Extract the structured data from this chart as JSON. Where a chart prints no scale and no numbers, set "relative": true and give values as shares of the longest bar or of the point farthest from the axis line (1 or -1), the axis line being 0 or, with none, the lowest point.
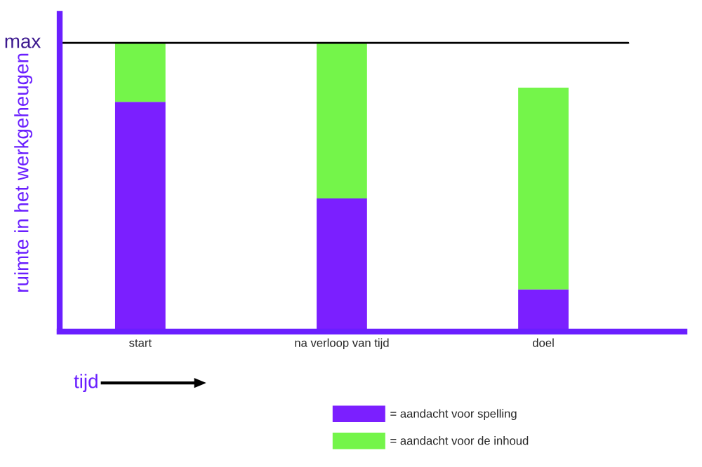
{
  "chart_data": {
    "type": "bar",
    "stacked": true,
    "relative": true,
    "categories": [
      "start",
      "na verloop van tijd",
      "doel"
    ],
    "series": [
      {
        "name": "= aandacht voor spelling",
        "color": "#7b1fff",
        "values": [
          0.796,
          0.461,
          0.146
        ]
      },
      {
        "name": "= aandacht voor de inhoud",
        "color": "#74f54a",
        "values": [
          0.204,
          0.539,
          0.699
        ]
      }
    ],
    "xlabel": "tijd",
    "ylabel": "ruimte in het werkgeheugen",
    "ref_lines": [
      {
        "axis": "y",
        "value": 1,
        "label": "max",
        "color": "#000000",
        "line_style": "solid"
      }
    ],
    "legend": "bottom",
    "grid": false
  }
}
